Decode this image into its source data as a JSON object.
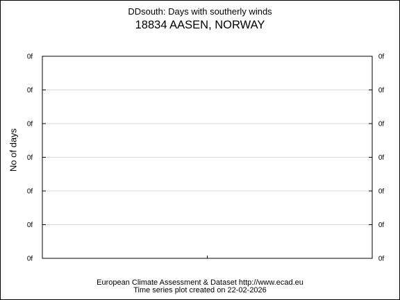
{
  "chart_data": {
    "type": "line",
    "title": "DDsouth: Days with southerly winds",
    "subtitle": "18834 AASEN, NORWAY",
    "ylabel": "No of days",
    "xlabel": "",
    "y_tick_labels": [
      "0f",
      "0f",
      "0f",
      "0f",
      "0f",
      "0f",
      "0f"
    ],
    "series": [],
    "grid": "horizontal",
    "legend": "none"
  },
  "footer": {
    "line1": "European Climate Assessment & Dataset  http://www.ecad.eu",
    "line2": "Time series plot created on 22-02-2026"
  }
}
